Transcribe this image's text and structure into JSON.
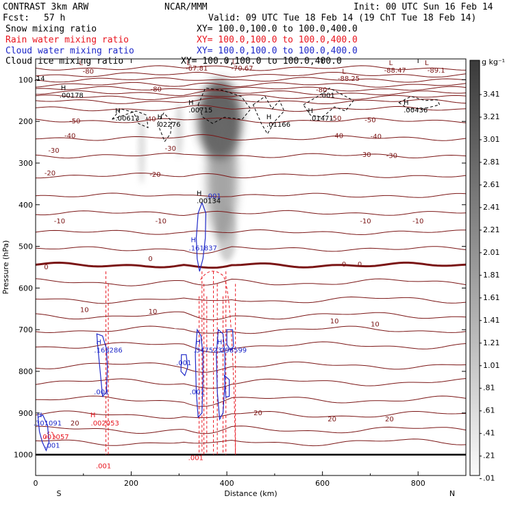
{
  "header": {
    "title_left": "CONTRAST  3km ARW",
    "title_center": "NCAR/MMM",
    "init": "Init: 00 UTC Sun 16 Feb 14",
    "fcst_label": "Fcst:",
    "fcst_value": "57 h",
    "valid": "Valid: 09 UTC Tue 18 Feb 14 (19 ChT Tue 18 Feb 14)"
  },
  "fields": [
    {
      "name": "Snow mixing ratio",
      "xy": "XY= 100.0,100.0 to 100.0,400.0",
      "color": "#000000"
    },
    {
      "name": "Rain water mixing ratio",
      "xy": "XY= 100.0,100.0 to 100.0,400.0",
      "color": "#e8141e"
    },
    {
      "name": "Cloud water mixing ratio",
      "xy": "XY= 100.0,100.0 to 100.0,400.0",
      "color": "#1e28c8"
    },
    {
      "name": "Cloud ice mixing ratio",
      "xy": "XY= 100.0,100.0 to 100.0,400.0",
      "color": "#000000"
    }
  ],
  "chart_data": {
    "type": "contour-cross-section",
    "xlabel": "Distance (km)",
    "ylabel": "Pressure (hPa)",
    "xlim": [
      0,
      900
    ],
    "ylim": [
      1050,
      50
    ],
    "x_ticks": [
      0,
      200,
      400,
      600,
      800
    ],
    "y_ticks": [
      100,
      200,
      300,
      400,
      500,
      600,
      700,
      800,
      900,
      1000
    ],
    "x_end_labels": {
      "left": "S",
      "right": "N"
    },
    "colorbar": {
      "unit": "g kg⁻¹",
      "labels": [
        "3.41",
        "3.21",
        "3.01",
        "2.81",
        "2.61",
        "2.41",
        "2.21",
        "2.01",
        "1.81",
        "1.61",
        "1.41",
        "1.21",
        "1.01",
        ".81",
        ".61",
        ".41",
        ".21",
        ".01"
      ]
    },
    "temperature_contours": {
      "color": "#7a1414",
      "levels": [
        -80,
        -70,
        -60,
        -50,
        -40,
        -30,
        -20,
        -10,
        0,
        10,
        20
      ],
      "freezing_level_hpa": 545
    },
    "labels": [
      {
        "text": "-80",
        "x": 110,
        "p": 85,
        "color": "#7a1414"
      },
      {
        "text": "-80",
        "x": 252,
        "p": 128,
        "color": "#7a1414"
      },
      {
        "text": "-80",
        "x": 598,
        "p": 130,
        "color": "#7a1414"
      },
      {
        "text": "L",
        "x": 95,
        "p": 65,
        "color": "#7a1414"
      },
      {
        "text": "L",
        "x": 320,
        "p": 65,
        "color": "#7a1414"
      },
      {
        "text": "-67.81",
        "x": 337,
        "p": 78,
        "color": "#7a1414"
      },
      {
        "text": "L",
        "x": 415,
        "p": 62,
        "color": "#7a1414"
      },
      {
        "text": "-70.67",
        "x": 432,
        "p": 78,
        "color": "#7a1414"
      },
      {
        "text": "L",
        "x": 645,
        "p": 85,
        "color": "#7a1414"
      },
      {
        "text": "-88.25",
        "x": 655,
        "p": 103,
        "color": "#7a1414"
      },
      {
        "text": "L",
        "x": 743,
        "p": 65,
        "color": "#7a1414"
      },
      {
        "text": "-88.47",
        "x": 752,
        "p": 83,
        "color": "#7a1414"
      },
      {
        "text": "L",
        "x": 818,
        "p": 65,
        "color": "#7a1414"
      },
      {
        "text": "-89.1",
        "x": 838,
        "p": 83,
        "color": "#7a1414"
      },
      {
        "text": ".14",
        "x": 8,
        "p": 103,
        "color": "#000000"
      },
      {
        "text": "H",
        "x": 58,
        "p": 125,
        "color": "#000000"
      },
      {
        "text": ".00178",
        "x": 75,
        "p": 143,
        "color": "#000000"
      },
      {
        "text": "H",
        "x": 325,
        "p": 160,
        "color": "#000000"
      },
      {
        "text": ".00715",
        "x": 345,
        "p": 178,
        "color": "#000000"
      },
      {
        "text": ".001",
        "x": 610,
        "p": 143,
        "color": "#000000"
      },
      {
        "text": "H",
        "x": 575,
        "p": 180,
        "color": "#000000"
      },
      {
        "text": ".01471",
        "x": 598,
        "p": 198,
        "color": "#000000"
      },
      {
        "text": "H",
        "x": 775,
        "p": 160,
        "color": "#000000"
      },
      {
        "text": ".00436",
        "x": 795,
        "p": 178,
        "color": "#000000"
      },
      {
        "text": "H",
        "x": 172,
        "p": 180,
        "color": "#000000"
      },
      {
        "text": ".00613",
        "x": 192,
        "p": 198,
        "color": "#000000"
      },
      {
        "text": "H",
        "x": 260,
        "p": 195,
        "color": "#000000"
      },
      {
        "text": ".02276",
        "x": 278,
        "p": 213,
        "color": "#000000"
      },
      {
        "text": "H",
        "x": 488,
        "p": 195,
        "color": "#000000"
      },
      {
        "text": ".01166",
        "x": 508,
        "p": 213,
        "color": "#000000"
      },
      {
        "text": "-50",
        "x": 82,
        "p": 205,
        "color": "#7a1414"
      },
      {
        "text": "-40",
        "x": 240,
        "p": 200,
        "color": "#7a1414"
      },
      {
        "text": "-50",
        "x": 628,
        "p": 198,
        "color": "#7a1414"
      },
      {
        "text": "-50",
        "x": 700,
        "p": 202,
        "color": "#7a1414"
      },
      {
        "text": "-40",
        "x": 72,
        "p": 240,
        "color": "#7a1414"
      },
      {
        "text": "-40",
        "x": 632,
        "p": 240,
        "color": "#7a1414"
      },
      {
        "text": "-40",
        "x": 712,
        "p": 242,
        "color": "#7a1414"
      },
      {
        "text": "-30",
        "x": 38,
        "p": 275,
        "color": "#7a1414"
      },
      {
        "text": "-30",
        "x": 282,
        "p": 270,
        "color": "#7a1414"
      },
      {
        "text": "-30",
        "x": 690,
        "p": 285,
        "color": "#7a1414"
      },
      {
        "text": "-30",
        "x": 745,
        "p": 288,
        "color": "#7a1414"
      },
      {
        "text": "-20",
        "x": 30,
        "p": 330,
        "color": "#7a1414"
      },
      {
        "text": "-20",
        "x": 250,
        "p": 333,
        "color": "#7a1414"
      },
      {
        "text": "H",
        "x": 342,
        "p": 378,
        "color": "#000000"
      },
      {
        "text": ".00134",
        "x": 362,
        "p": 396,
        "color": "#000000"
      },
      {
        "text": ".001",
        "x": 372,
        "p": 385,
        "color": "#1e28c8"
      },
      {
        "text": "-10",
        "x": 50,
        "p": 445,
        "color": "#7a1414"
      },
      {
        "text": "-10",
        "x": 262,
        "p": 445,
        "color": "#7a1414"
      },
      {
        "text": "-10",
        "x": 690,
        "p": 445,
        "color": "#7a1414"
      },
      {
        "text": "-10",
        "x": 800,
        "p": 445,
        "color": "#7a1414"
      },
      {
        "text": "H",
        "x": 330,
        "p": 490,
        "color": "#1e28c8"
      },
      {
        "text": ".161837",
        "x": 350,
        "p": 510,
        "color": "#1e28c8"
      },
      {
        "text": "0",
        "x": 22,
        "p": 555,
        "color": "#7a1414"
      },
      {
        "text": "0",
        "x": 240,
        "p": 535,
        "color": "#7a1414"
      },
      {
        "text": "0",
        "x": 645,
        "p": 548,
        "color": "#7a1414"
      },
      {
        "text": "0",
        "x": 678,
        "p": 548,
        "color": "#7a1414"
      },
      {
        "text": "10",
        "x": 102,
        "p": 658,
        "color": "#7a1414"
      },
      {
        "text": "10",
        "x": 245,
        "p": 662,
        "color": "#7a1414"
      },
      {
        "text": "10",
        "x": 625,
        "p": 685,
        "color": "#7a1414"
      },
      {
        "text": "10",
        "x": 710,
        "p": 692,
        "color": "#7a1414"
      },
      {
        "text": "H",
        "x": 132,
        "p": 735,
        "color": "#1e28c8"
      },
      {
        "text": ".163286",
        "x": 152,
        "p": 755,
        "color": "#1e28c8"
      },
      {
        "text": "H",
        "x": 340,
        "p": 735,
        "color": "#1e28c8"
      },
      {
        "text": ".347523",
        "x": 360,
        "p": 755,
        "color": "#1e28c8"
      },
      {
        "text": "H",
        "x": 385,
        "p": 735,
        "color": "#1e28c8"
      },
      {
        "text": ".298599",
        "x": 412,
        "p": 755,
        "color": "#1e28c8"
      },
      {
        "text": ".001",
        "x": 310,
        "p": 785,
        "color": "#1e28c8"
      },
      {
        "text": ".001",
        "x": 138,
        "p": 855,
        "color": "#1e28c8"
      },
      {
        "text": ".001",
        "x": 338,
        "p": 855,
        "color": "#1e28c8"
      },
      {
        "text": "H",
        "x": 8,
        "p": 910,
        "color": "#1e28c8"
      },
      {
        "text": ".301091",
        "x": 25,
        "p": 930,
        "color": "#1e28c8"
      },
      {
        "text": "H",
        "x": 120,
        "p": 910,
        "color": "#e8141e"
      },
      {
        "text": ".002053",
        "x": 145,
        "p": 930,
        "color": "#e8141e"
      },
      {
        "text": "20",
        "x": 82,
        "p": 930,
        "color": "#7a1414"
      },
      {
        "text": "20",
        "x": 465,
        "p": 905,
        "color": "#7a1414"
      },
      {
        "text": "20",
        "x": 620,
        "p": 920,
        "color": "#7a1414"
      },
      {
        "text": "20",
        "x": 740,
        "p": 920,
        "color": "#7a1414"
      },
      {
        "text": ".001057",
        "x": 40,
        "p": 963,
        "color": "#e8141e"
      },
      {
        "text": ".001",
        "x": 35,
        "p": 983,
        "color": "#1e28c8"
      },
      {
        "text": ".001",
        "x": 335,
        "p": 1013,
        "color": "#e8141e"
      },
      {
        "text": ".001",
        "x": 142,
        "p": 1033,
        "color": "#e8141e"
      }
    ]
  }
}
